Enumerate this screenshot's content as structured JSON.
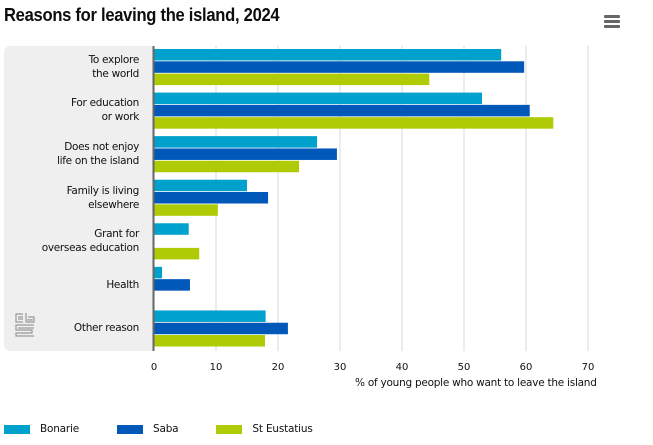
{
  "header": {
    "title": "Reasons for leaving the island, 2024",
    "menu_icon": "hamburger-menu-icon"
  },
  "logo": {
    "icon": "cbs-logo-icon"
  },
  "chart_data": {
    "type": "bar",
    "orientation": "horizontal",
    "title": "Reasons for leaving the island, 2024",
    "xlabel": "% of young people who want to leave the island",
    "ylabel": "",
    "xlim": [
      0,
      70
    ],
    "xticks": [
      0,
      10,
      20,
      30,
      40,
      50,
      60,
      70
    ],
    "grid": true,
    "legend_position": "bottom-left",
    "categories": [
      "To explore\nthe world",
      "For education\nor work",
      "Does not enjoy\nlife on the island",
      "Family is living\nelsewhere",
      "Grant for\noverseas education",
      "Health",
      "Other reason"
    ],
    "series": [
      {
        "name": "Bonarie",
        "color": "#00a1cd",
        "values": [
          56.0,
          52.9,
          26.3,
          15.0,
          5.6,
          1.3,
          18.0
        ]
      },
      {
        "name": "Saba",
        "color": "#0058b8",
        "values": [
          59.7,
          60.6,
          29.5,
          18.4,
          null,
          5.8,
          21.6
        ]
      },
      {
        "name": "St Eustatius",
        "color": "#afcb05",
        "values": [
          44.4,
          64.4,
          23.4,
          10.3,
          7.3,
          null,
          17.9
        ]
      }
    ]
  },
  "colors": {
    "panel_background": "#efefef",
    "axis_line": "#666666",
    "gridline": "#e6e6e6"
  }
}
